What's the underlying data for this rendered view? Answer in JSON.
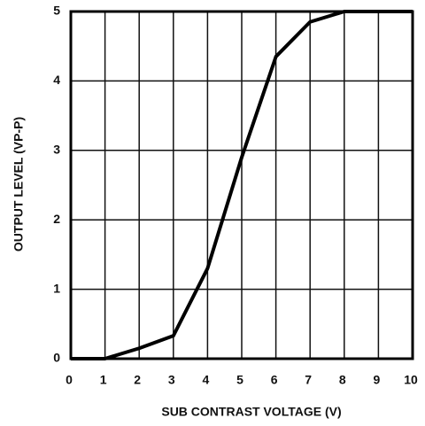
{
  "chart_data": {
    "type": "line",
    "x": [
      0,
      1,
      2,
      3,
      4,
      5,
      6,
      7,
      8,
      10
    ],
    "values": [
      0,
      0,
      0.15,
      0.33,
      1.3,
      2.9,
      4.35,
      4.85,
      5,
      5
    ],
    "color": "#000000",
    "xlabel": "SUB CONTRAST VOLTAGE (V)",
    "ylabel": "OUTPUT LEVEL (VP-P)",
    "xlim": [
      0,
      10
    ],
    "xticks": [
      0,
      1,
      2,
      3,
      4,
      5,
      6,
      7,
      8,
      9,
      10
    ],
    "ylim": [
      0,
      5
    ],
    "yticks": [
      0,
      1,
      2,
      3,
      4,
      5
    ],
    "grid": true
  }
}
